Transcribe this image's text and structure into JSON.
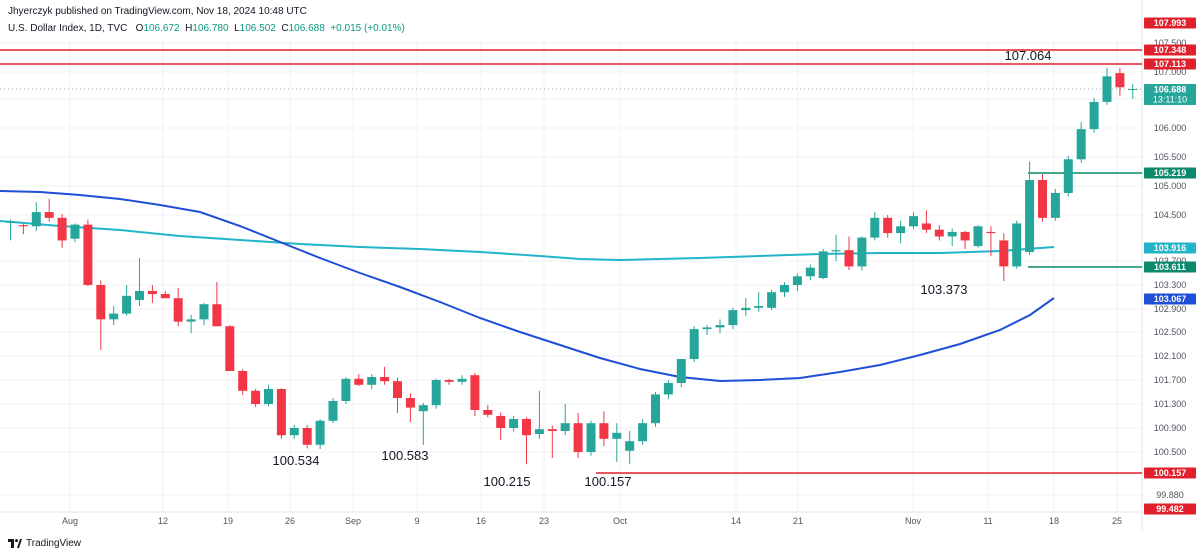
{
  "header": {
    "published": "Jhyerczyk published on TradingView.com, Nov 18, 2024 10:48 UTC",
    "symbol": "U.S. Dollar Index, 1D, TVC",
    "o_label": "O",
    "o_value": "106.672",
    "h_label": "H",
    "h_value": "106.780",
    "l_label": "L",
    "l_value": "106.502",
    "c_label": "C",
    "c_value": "106.688",
    "change": "+0.015 (+0.01%)"
  },
  "footer": {
    "brand": "TradingView"
  },
  "colors": {
    "up": "#26a69a",
    "down": "#f23645",
    "sma_dark": "#1e4fd6",
    "sma_light": "#22b5c9",
    "resistance": "#e0202a",
    "support": "#0b8a6b",
    "grid": "#eef0f3"
  },
  "chart_data": {
    "type": "candlestick",
    "y_axis_ticks": [
      "107.500",
      "107.000",
      "106.500",
      "106.000",
      "105.500",
      "105.000",
      "104.500",
      "103.700",
      "103.300",
      "102.900",
      "102.500",
      "102.100",
      "101.700",
      "101.300",
      "100.900",
      "100.500",
      "99.880"
    ],
    "x_axis_labels": [
      "Aug",
      "12",
      "19",
      "26",
      "Sep",
      "9",
      "16",
      "23",
      "Oct",
      "14",
      "21",
      "Nov",
      "11",
      "18",
      "25"
    ],
    "price_tags": [
      {
        "label": "107.993",
        "role": "resistance"
      },
      {
        "label": "107.348",
        "role": "resistance"
      },
      {
        "label": "107.113",
        "role": "resistance"
      },
      {
        "label": "106.688",
        "role": "current",
        "countdown": "13:11:10"
      },
      {
        "label": "105.219",
        "role": "support"
      },
      {
        "label": "103.916",
        "role": "sma_light"
      },
      {
        "label": "103.611",
        "role": "support"
      },
      {
        "label": "103.067",
        "role": "sma_dark"
      },
      {
        "label": "100.157",
        "role": "resistance"
      },
      {
        "label": "99.482",
        "role": "resistance"
      }
    ],
    "horizontal_levels": [
      {
        "value": 107.348,
        "color": "resistance"
      },
      {
        "value": 107.113,
        "color": "resistance"
      },
      {
        "value": 105.219,
        "color": "support"
      },
      {
        "value": 103.611,
        "color": "support"
      },
      {
        "value": 100.157,
        "color": "resistance"
      }
    ],
    "annotations": [
      "107.064",
      "103.373",
      "100.534",
      "100.583",
      "100.215",
      "100.157"
    ],
    "candles": [
      {
        "o": 104.36,
        "h": 104.42,
        "l": 104.05,
        "c": 104.38
      },
      {
        "o": 104.32,
        "h": 104.34,
        "l": 104.16,
        "c": 104.3
      },
      {
        "o": 104.3,
        "h": 104.72,
        "l": 104.22,
        "c": 104.55
      },
      {
        "o": 104.55,
        "h": 104.78,
        "l": 104.38,
        "c": 104.45
      },
      {
        "o": 104.45,
        "h": 104.52,
        "l": 103.92,
        "c": 104.05
      },
      {
        "o": 104.08,
        "h": 104.35,
        "l": 104.02,
        "c": 104.33
      },
      {
        "o": 104.33,
        "h": 104.42,
        "l": 103.28,
        "c": 103.3
      },
      {
        "o": 103.3,
        "h": 103.38,
        "l": 102.2,
        "c": 102.72
      },
      {
        "o": 102.72,
        "h": 102.95,
        "l": 102.62,
        "c": 102.82
      },
      {
        "o": 102.82,
        "h": 103.3,
        "l": 102.78,
        "c": 103.12
      },
      {
        "o": 103.05,
        "h": 103.75,
        "l": 102.95,
        "c": 103.2
      },
      {
        "o": 103.2,
        "h": 103.3,
        "l": 103.0,
        "c": 103.15
      },
      {
        "o": 103.15,
        "h": 103.2,
        "l": 103.08,
        "c": 103.08
      },
      {
        "o": 103.08,
        "h": 103.25,
        "l": 102.6,
        "c": 102.68
      },
      {
        "o": 102.68,
        "h": 102.8,
        "l": 102.48,
        "c": 102.72
      },
      {
        "o": 102.72,
        "h": 103.0,
        "l": 102.62,
        "c": 102.98
      },
      {
        "o": 102.98,
        "h": 103.35,
        "l": 102.6,
        "c": 102.6
      },
      {
        "o": 102.6,
        "h": 102.62,
        "l": 101.85,
        "c": 101.85
      },
      {
        "o": 101.85,
        "h": 101.88,
        "l": 101.45,
        "c": 101.52
      },
      {
        "o": 101.52,
        "h": 101.55,
        "l": 101.25,
        "c": 101.3
      },
      {
        "o": 101.3,
        "h": 101.62,
        "l": 101.26,
        "c": 101.55
      },
      {
        "o": 101.55,
        "h": 101.56,
        "l": 100.72,
        "c": 100.78
      },
      {
        "o": 100.78,
        "h": 100.95,
        "l": 100.72,
        "c": 100.9
      },
      {
        "o": 100.9,
        "h": 100.95,
        "l": 100.56,
        "c": 100.62
      },
      {
        "o": 100.62,
        "h": 101.05,
        "l": 100.55,
        "c": 101.02
      },
      {
        "o": 101.02,
        "h": 101.4,
        "l": 100.98,
        "c": 101.35
      },
      {
        "o": 101.35,
        "h": 101.75,
        "l": 101.3,
        "c": 101.72
      },
      {
        "o": 101.72,
        "h": 101.8,
        "l": 101.6,
        "c": 101.62
      },
      {
        "o": 101.62,
        "h": 101.8,
        "l": 101.55,
        "c": 101.75
      },
      {
        "o": 101.75,
        "h": 101.92,
        "l": 101.62,
        "c": 101.68
      },
      {
        "o": 101.68,
        "h": 101.74,
        "l": 101.15,
        "c": 101.4
      },
      {
        "o": 101.4,
        "h": 101.48,
        "l": 101.0,
        "c": 101.24
      },
      {
        "o": 101.18,
        "h": 101.32,
        "l": 100.62,
        "c": 101.28
      },
      {
        "o": 101.28,
        "h": 101.72,
        "l": 101.22,
        "c": 101.7
      },
      {
        "o": 101.7,
        "h": 101.72,
        "l": 101.62,
        "c": 101.67
      },
      {
        "o": 101.67,
        "h": 101.78,
        "l": 101.62,
        "c": 101.72
      },
      {
        "o": 101.78,
        "h": 101.82,
        "l": 101.1,
        "c": 101.2
      },
      {
        "o": 101.2,
        "h": 101.28,
        "l": 101.08,
        "c": 101.12
      },
      {
        "o": 101.1,
        "h": 101.16,
        "l": 100.7,
        "c": 100.9
      },
      {
        "o": 100.9,
        "h": 101.1,
        "l": 100.84,
        "c": 101.05
      },
      {
        "o": 101.05,
        "h": 101.08,
        "l": 100.3,
        "c": 100.78
      },
      {
        "o": 100.8,
        "h": 101.52,
        "l": 100.72,
        "c": 100.88
      },
      {
        "o": 100.88,
        "h": 100.94,
        "l": 100.4,
        "c": 100.85
      },
      {
        "o": 100.85,
        "h": 101.3,
        "l": 100.78,
        "c": 100.98
      },
      {
        "o": 100.98,
        "h": 101.15,
        "l": 100.4,
        "c": 100.5
      },
      {
        "o": 100.5,
        "h": 101.02,
        "l": 100.44,
        "c": 100.98
      },
      {
        "o": 100.98,
        "h": 101.18,
        "l": 100.6,
        "c": 100.72
      },
      {
        "o": 100.72,
        "h": 100.98,
        "l": 100.34,
        "c": 100.82
      },
      {
        "o": 100.52,
        "h": 100.85,
        "l": 100.3,
        "c": 100.68
      },
      {
        "o": 100.68,
        "h": 101.05,
        "l": 100.62,
        "c": 100.98
      },
      {
        "o": 100.98,
        "h": 101.5,
        "l": 100.92,
        "c": 101.46
      },
      {
        "o": 101.46,
        "h": 101.7,
        "l": 101.38,
        "c": 101.65
      },
      {
        "o": 101.65,
        "h": 102.05,
        "l": 101.58,
        "c": 102.05
      },
      {
        "o": 102.05,
        "h": 102.6,
        "l": 102.0,
        "c": 102.55
      },
      {
        "o": 102.55,
        "h": 102.62,
        "l": 102.45,
        "c": 102.58
      },
      {
        "o": 102.58,
        "h": 102.72,
        "l": 102.48,
        "c": 102.62
      },
      {
        "o": 102.62,
        "h": 102.92,
        "l": 102.55,
        "c": 102.88
      },
      {
        "o": 102.88,
        "h": 103.08,
        "l": 102.78,
        "c": 102.92
      },
      {
        "o": 102.92,
        "h": 103.18,
        "l": 102.85,
        "c": 102.95
      },
      {
        "o": 102.92,
        "h": 103.22,
        "l": 102.88,
        "c": 103.18
      },
      {
        "o": 103.18,
        "h": 103.35,
        "l": 103.1,
        "c": 103.3
      },
      {
        "o": 103.3,
        "h": 103.5,
        "l": 103.2,
        "c": 103.45
      },
      {
        "o": 103.45,
        "h": 103.65,
        "l": 103.38,
        "c": 103.6
      },
      {
        "o": 103.42,
        "h": 103.9,
        "l": 103.4,
        "c": 103.86
      },
      {
        "o": 103.86,
        "h": 104.15,
        "l": 103.7,
        "c": 103.88
      },
      {
        "o": 103.88,
        "h": 104.12,
        "l": 103.56,
        "c": 103.62
      },
      {
        "o": 103.62,
        "h": 104.12,
        "l": 103.55,
        "c": 104.1
      },
      {
        "o": 104.1,
        "h": 104.55,
        "l": 104.05,
        "c": 104.45
      },
      {
        "o": 104.45,
        "h": 104.5,
        "l": 104.1,
        "c": 104.18
      },
      {
        "o": 104.18,
        "h": 104.4,
        "l": 104.0,
        "c": 104.3
      },
      {
        "o": 104.3,
        "h": 104.55,
        "l": 104.25,
        "c": 104.48
      },
      {
        "o": 104.35,
        "h": 104.58,
        "l": 104.18,
        "c": 104.24
      },
      {
        "o": 104.24,
        "h": 104.32,
        "l": 104.05,
        "c": 104.12
      },
      {
        "o": 104.12,
        "h": 104.26,
        "l": 103.95,
        "c": 104.2
      },
      {
        "o": 104.2,
        "h": 104.22,
        "l": 103.9,
        "c": 104.05
      },
      {
        "o": 103.95,
        "h": 104.32,
        "l": 103.92,
        "c": 104.3
      },
      {
        "o": 104.2,
        "h": 104.3,
        "l": 103.78,
        "c": 104.18
      },
      {
        "o": 104.05,
        "h": 104.18,
        "l": 103.37,
        "c": 103.62
      },
      {
        "o": 103.62,
        "h": 104.4,
        "l": 103.58,
        "c": 104.35
      },
      {
        "o": 103.85,
        "h": 105.42,
        "l": 103.8,
        "c": 105.1
      },
      {
        "o": 105.1,
        "h": 105.2,
        "l": 104.38,
        "c": 104.45
      },
      {
        "o": 104.45,
        "h": 104.95,
        "l": 104.4,
        "c": 104.88
      },
      {
        "o": 104.88,
        "h": 105.52,
        "l": 104.82,
        "c": 105.46
      },
      {
        "o": 105.46,
        "h": 106.1,
        "l": 105.4,
        "c": 105.98
      },
      {
        "o": 105.98,
        "h": 106.52,
        "l": 105.92,
        "c": 106.45
      },
      {
        "o": 106.45,
        "h": 107.06,
        "l": 106.4,
        "c": 106.92
      },
      {
        "o": 106.98,
        "h": 107.06,
        "l": 106.55,
        "c": 106.72
      },
      {
        "o": 106.672,
        "h": 106.78,
        "l": 106.502,
        "c": 106.688
      }
    ]
  }
}
